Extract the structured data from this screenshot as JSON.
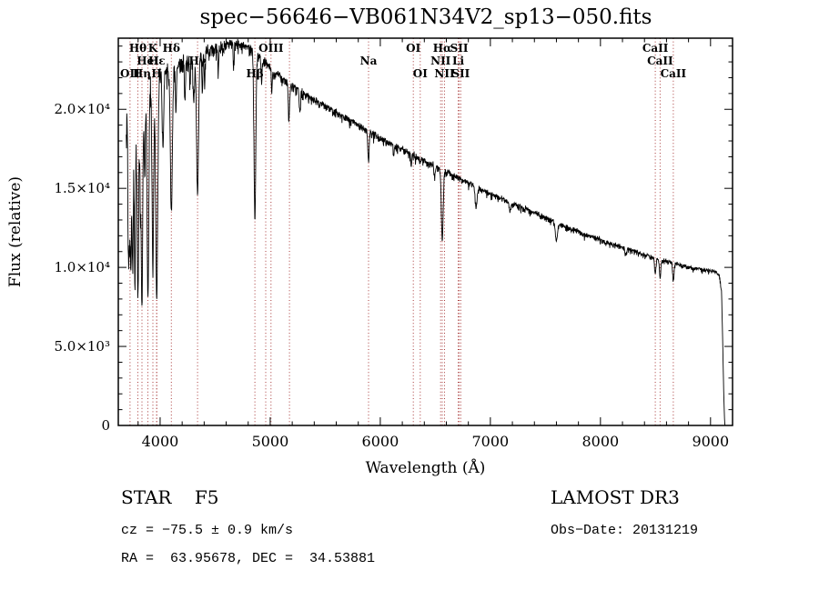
{
  "chart_data": {
    "type": "line",
    "title": "spec−56646−VB061N34V2_sp13−050.fits",
    "xlabel": "Wavelength (Å)",
    "ylabel": "Flux (relative)",
    "xlim": [
      3620,
      9200
    ],
    "ylim": [
      0,
      24500
    ],
    "x_ticks": [
      4000,
      5000,
      6000,
      7000,
      8000,
      9000
    ],
    "x_tick_labels": [
      "4000",
      "5000",
      "6000",
      "7000",
      "8000",
      "9000"
    ],
    "x_minor_step": 200,
    "y_ticks": [
      0,
      5000,
      10000,
      15000,
      20000
    ],
    "y_tick_labels": [
      "0",
      "5.0×10³",
      "1.0×10⁴",
      "1.5×10⁴",
      "2.0×10⁴"
    ],
    "y_minor_step": 1000,
    "grid": false,
    "line_color": "#000000",
    "marker_line_color": "#a83838",
    "spectrum": {
      "wave_start": 3692,
      "wave_end": 9135,
      "step": 2.5,
      "continuum": [
        [
          3690,
          17500
        ],
        [
          3700,
          19000
        ],
        [
          3730,
          20000
        ],
        [
          3780,
          20600
        ],
        [
          3850,
          21200
        ],
        [
          3950,
          21800
        ],
        [
          4050,
          22300
        ],
        [
          4150,
          22700
        ],
        [
          4250,
          23100
        ],
        [
          4350,
          23500
        ],
        [
          4450,
          23800
        ],
        [
          4550,
          24000
        ],
        [
          4650,
          24150
        ],
        [
          4750,
          24100
        ],
        [
          4850,
          23700
        ],
        [
          4950,
          23000
        ],
        [
          5050,
          22300
        ],
        [
          5150,
          21700
        ],
        [
          5250,
          21200
        ],
        [
          5350,
          20800
        ],
        [
          5450,
          20400
        ],
        [
          5550,
          20000
        ],
        [
          5650,
          19600
        ],
        [
          5750,
          19200
        ],
        [
          5850,
          18800
        ],
        [
          5950,
          18400
        ],
        [
          6050,
          18000
        ],
        [
          6150,
          17600
        ],
        [
          6250,
          17300
        ],
        [
          6350,
          16900
        ],
        [
          6450,
          16600
        ],
        [
          6550,
          16200
        ],
        [
          6650,
          15900
        ],
        [
          6750,
          15500
        ],
        [
          6850,
          15200
        ],
        [
          6950,
          14800
        ],
        [
          7050,
          14500
        ],
        [
          7150,
          14200
        ],
        [
          7250,
          13900
        ],
        [
          7350,
          13600
        ],
        [
          7450,
          13300
        ],
        [
          7550,
          13000
        ],
        [
          7650,
          12700
        ],
        [
          7750,
          12400
        ],
        [
          7850,
          12100
        ],
        [
          7950,
          11900
        ],
        [
          8050,
          11600
        ],
        [
          8150,
          11400
        ],
        [
          8250,
          11200
        ],
        [
          8350,
          10900
        ],
        [
          8450,
          10700
        ],
        [
          8550,
          10500
        ],
        [
          8650,
          10300
        ],
        [
          8750,
          10100
        ],
        [
          8850,
          9950
        ],
        [
          8950,
          9850
        ],
        [
          9040,
          9750
        ],
        [
          9080,
          9550
        ],
        [
          9100,
          8500
        ],
        [
          9110,
          5500
        ],
        [
          9120,
          2000
        ],
        [
          9128,
          200
        ],
        [
          9132,
          0
        ]
      ],
      "absorption_lines": [
        [
          3712,
          0.4,
          5
        ],
        [
          3722,
          0.35,
          5
        ],
        [
          3734,
          0.48,
          5
        ],
        [
          3750,
          0.52,
          6
        ],
        [
          3771,
          0.56,
          6
        ],
        [
          3798,
          0.62,
          7
        ],
        [
          3820,
          0.25,
          5
        ],
        [
          3835,
          0.64,
          7
        ],
        [
          3860,
          0.28,
          5
        ],
        [
          3889,
          0.62,
          8
        ],
        [
          3934,
          0.55,
          7
        ],
        [
          3969,
          0.64,
          9
        ],
        [
          4026,
          0.22,
          6
        ],
        [
          4102,
          0.4,
          9
        ],
        [
          4144,
          0.12,
          5
        ],
        [
          4226,
          0.12,
          4
        ],
        [
          4271,
          0.08,
          4
        ],
        [
          4305,
          0.12,
          6
        ],
        [
          4340,
          0.38,
          9
        ],
        [
          4383,
          0.12,
          4
        ],
        [
          4404,
          0.09,
          4
        ],
        [
          4528,
          0.07,
          4
        ],
        [
          4668,
          0.06,
          4
        ],
        [
          4861,
          0.45,
          8
        ],
        [
          4922,
          0.07,
          4
        ],
        [
          5015,
          0.06,
          4
        ],
        [
          5170,
          0.1,
          6
        ],
        [
          5270,
          0.06,
          5
        ],
        [
          5893,
          0.1,
          6
        ],
        [
          6122,
          0.04,
          4
        ],
        [
          6280,
          0.05,
          4
        ],
        [
          6494,
          0.05,
          5
        ],
        [
          6563,
          0.28,
          8
        ],
        [
          6870,
          0.08,
          9
        ],
        [
          7180,
          0.04,
          8
        ],
        [
          7600,
          0.09,
          10
        ],
        [
          8230,
          0.04,
          8
        ],
        [
          8498,
          0.1,
          6
        ],
        [
          8542,
          0.12,
          6
        ],
        [
          8662,
          0.11,
          6
        ]
      ],
      "noise": {
        "seed": 12345,
        "base": 0.011,
        "blue_extra": 0.055,
        "blue_scale": 260
      }
    },
    "spectral_markers": [
      {
        "wavelength": 3727,
        "label": "OII",
        "row": 3
      },
      {
        "wavelength": 3798,
        "label": "Hθ",
        "row": 1
      },
      {
        "wavelength": 3835,
        "label": "Hη",
        "row": 3
      },
      {
        "wavelength": 3889,
        "label": "HeI",
        "row": 2
      },
      {
        "wavelength": 3934,
        "label": "K",
        "row": 1
      },
      {
        "wavelength": 3968,
        "label": "H",
        "row": 3
      },
      {
        "wavelength": 3970,
        "label": "Hε",
        "row": 2
      },
      {
        "wavelength": 4102,
        "label": "Hδ",
        "row": 1
      },
      {
        "wavelength": 4340,
        "label": "Hγ",
        "row": 2
      },
      {
        "wavelength": 4861,
        "label": "Hβ",
        "row": 3
      },
      {
        "wavelength": 4959,
        "label": "",
        "row": 2
      },
      {
        "wavelength": 5007,
        "label": "OIII",
        "row": 1
      },
      {
        "wavelength": 5175,
        "label": "",
        "row": 3
      },
      {
        "wavelength": 5893,
        "label": "Na",
        "row": 2
      },
      {
        "wavelength": 6300,
        "label": "OI",
        "row": 1
      },
      {
        "wavelength": 6363,
        "label": "OI",
        "row": 3
      },
      {
        "wavelength": 6548,
        "label": "NII",
        "row": 2
      },
      {
        "wavelength": 6563,
        "label": "Hα",
        "row": 1
      },
      {
        "wavelength": 6584,
        "label": "NII",
        "row": 3
      },
      {
        "wavelength": 6708,
        "label": "Li",
        "row": 2
      },
      {
        "wavelength": 6717,
        "label": "SII",
        "row": 1
      },
      {
        "wavelength": 6731,
        "label": "SII",
        "row": 3
      },
      {
        "wavelength": 8498,
        "label": "CaII",
        "row": 1
      },
      {
        "wavelength": 8542,
        "label": "CaII",
        "row": 2
      },
      {
        "wavelength": 8662,
        "label": "CaII",
        "row": 3
      }
    ]
  },
  "footer": {
    "left": {
      "class_line": "STAR    F5",
      "cz_line": "cz = −75.5 ± 0.9 km/s",
      "coord_line": "RA =  63.95678, DEC =  34.53881"
    },
    "right": {
      "survey_line": "LAMOST DR3",
      "obsdate_line": "Obs−Date: 20131219"
    }
  }
}
